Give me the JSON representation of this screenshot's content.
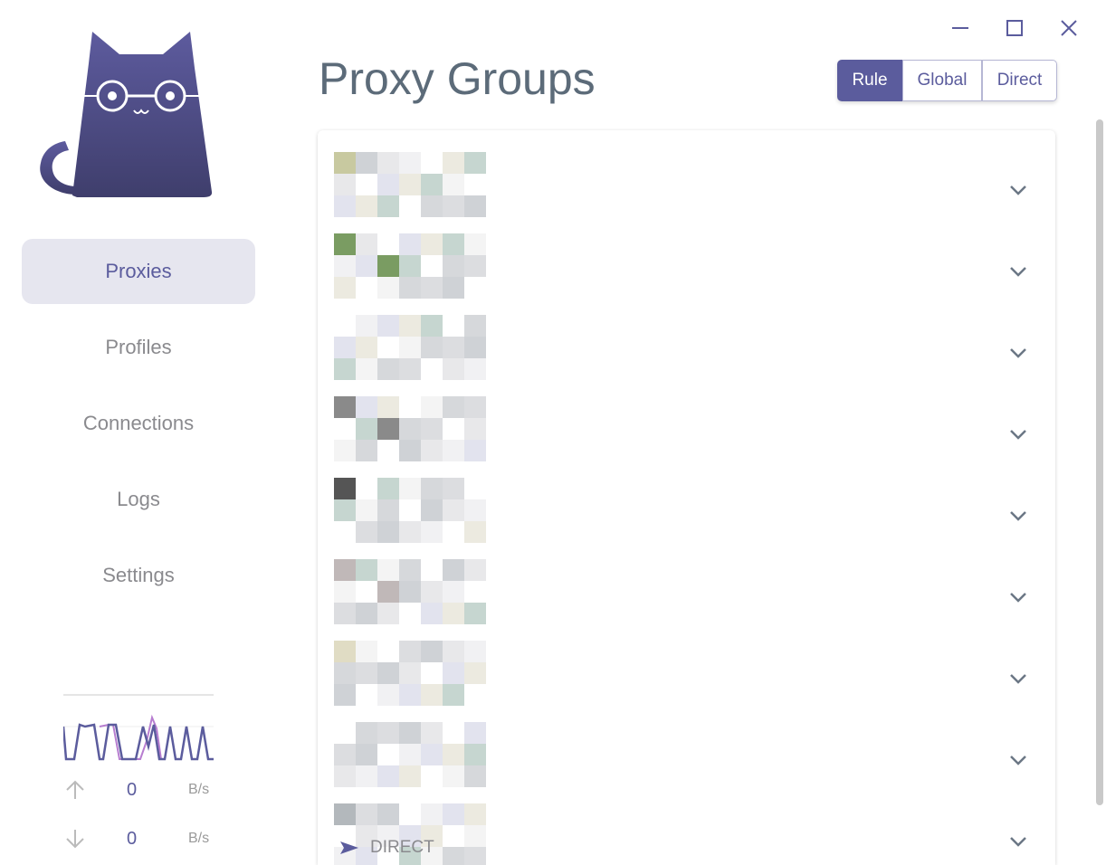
{
  "window": {
    "minimize": "minimize",
    "maximize": "maximize",
    "close": "close"
  },
  "sidebar": {
    "items": [
      {
        "label": "Proxies",
        "active": true
      },
      {
        "label": "Profiles"
      },
      {
        "label": "Connections"
      },
      {
        "label": "Logs"
      },
      {
        "label": "Settings"
      }
    ]
  },
  "traffic": {
    "up_value": "0",
    "up_unit": "B/s",
    "down_value": "0",
    "down_unit": "B/s"
  },
  "header": {
    "title": "Proxy Groups"
  },
  "modes": {
    "items": [
      "Rule",
      "Global",
      "Direct"
    ],
    "selected": "Rule"
  },
  "groups": {
    "count": 9,
    "last_proxy": "DIRECT"
  },
  "colors": {
    "accent": "#5b5c9d",
    "upload": "#b77dd0"
  }
}
